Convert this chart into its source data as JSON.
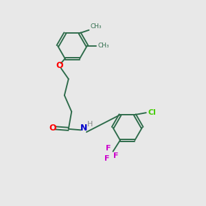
{
  "bg_color": "#e8e8e8",
  "bond_color": "#2d6b4a",
  "o_color": "#ff0000",
  "n_color": "#0000cc",
  "cl_color": "#44cc00",
  "f_color": "#cc00cc",
  "figsize": [
    3.0,
    3.0
  ],
  "dpi": 100,
  "ring_r": 0.72,
  "lw": 1.4,
  "xlim": [
    0,
    10
  ],
  "ylim": [
    0,
    10
  ],
  "r1cx": 3.5,
  "r1cy": 7.8,
  "r2cx": 6.2,
  "r2cy": 3.8
}
